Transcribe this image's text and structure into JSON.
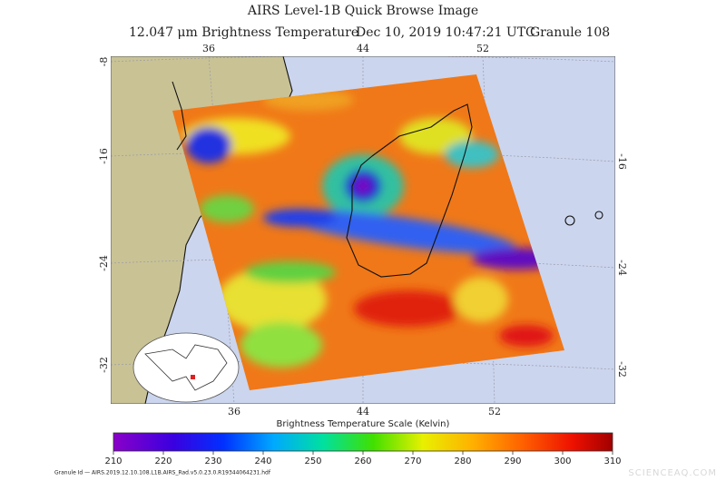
{
  "header": {
    "title": "AIRS Level-1B Quick Browse Image",
    "subtitle_band": "12.047 μm Brightness Temperature",
    "subtitle_time": "Dec 10, 2019 10:47:21 UTC",
    "subtitle_granule": "Granule 108"
  },
  "map": {
    "top_lon_labels": [
      "36",
      "44",
      "52"
    ],
    "bottom_lon_labels": [
      "36",
      "44",
      "52"
    ],
    "left_lat_labels": [
      "-8",
      "-16",
      "-24",
      "-32"
    ],
    "right_lat_labels": [
      "-16",
      "-24",
      "-32"
    ]
  },
  "colorbar": {
    "label": "Brightness Temperature Scale (Kelvin)",
    "ticks": [
      210,
      220,
      230,
      240,
      250,
      260,
      270,
      280,
      290,
      300,
      310
    ]
  },
  "footer": {
    "granule_id": "Granule Id — AIRS.2019.12.10.108.L1B.AIRS_Rad.v5.0.23.0.R19344064231.hdf",
    "watermark": "SCIENCEAQ.COM"
  }
}
